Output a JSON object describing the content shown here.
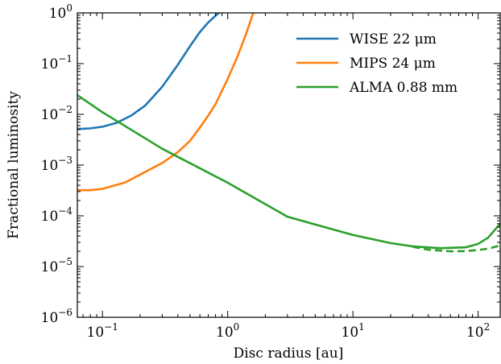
{
  "chart_data": {
    "type": "line",
    "title": "",
    "xlabel": "Disc radius [au]",
    "ylabel": "Fractional luminosity",
    "xscale": "log",
    "yscale": "log",
    "xlim": [
      0.063,
      150
    ],
    "ylim": [
      1e-06,
      1
    ],
    "x_ticks": [
      {
        "value": 0.1,
        "base": "10",
        "exp": "−1"
      },
      {
        "value": 1,
        "base": "10",
        "exp": "0"
      },
      {
        "value": 10,
        "base": "10",
        "exp": "1"
      },
      {
        "value": 100,
        "base": "10",
        "exp": "2"
      }
    ],
    "y_ticks": [
      {
        "value": 1e-06,
        "base": "10",
        "exp": "−6"
      },
      {
        "value": 1e-05,
        "base": "10",
        "exp": "−5"
      },
      {
        "value": 0.0001,
        "base": "10",
        "exp": "−4"
      },
      {
        "value": 0.001,
        "base": "10",
        "exp": "−3"
      },
      {
        "value": 0.01,
        "base": "10",
        "exp": "−2"
      },
      {
        "value": 0.1,
        "base": "10",
        "exp": "−1"
      },
      {
        "value": 1,
        "base": "10",
        "exp": "0"
      }
    ],
    "legend_position": "top-right",
    "grid": false,
    "series": [
      {
        "name": "WISE 22 μm",
        "color": "#1f77b4",
        "style": "solid",
        "x": [
          0.063,
          0.07,
          0.08,
          0.1,
          0.13,
          0.17,
          0.22,
          0.3,
          0.4,
          0.5,
          0.6,
          0.7,
          0.8,
          0.85
        ],
        "y": [
          0.0052,
          0.0052,
          0.0053,
          0.0057,
          0.0068,
          0.0095,
          0.015,
          0.035,
          0.095,
          0.22,
          0.42,
          0.65,
          0.88,
          1.0
        ]
      },
      {
        "name": "MIPS 24 μm",
        "color": "#ff7f0e",
        "style": "solid",
        "x": [
          0.063,
          0.08,
          0.1,
          0.15,
          0.2,
          0.3,
          0.4,
          0.5,
          0.6,
          0.7,
          0.8,
          1.0,
          1.2,
          1.4,
          1.6
        ],
        "y": [
          0.00032,
          0.00032,
          0.00034,
          0.00045,
          0.00065,
          0.0011,
          0.0018,
          0.003,
          0.0055,
          0.0095,
          0.016,
          0.05,
          0.14,
          0.38,
          1.0
        ]
      },
      {
        "name": "ALMA 0.88 mm",
        "color": "#2ca02c",
        "style": "solid",
        "x": [
          0.063,
          0.1,
          0.3,
          1,
          3,
          10,
          20,
          30,
          50,
          80,
          100,
          120,
          150
        ],
        "y": [
          0.024,
          0.011,
          0.0021,
          0.00045,
          9.6e-05,
          4.2e-05,
          2.9e-05,
          2.5e-05,
          2.3e-05,
          2.4e-05,
          2.8e-05,
          3.7e-05,
          7e-05
        ]
      },
      {
        "name": "",
        "color": "#2ca02c",
        "style": "dashed",
        "x": [
          30,
          40,
          60,
          80,
          100,
          120,
          150
        ],
        "y": [
          2.45e-05,
          2.15e-05,
          2e-05,
          2.02e-05,
          2.12e-05,
          2.25e-05,
          2.6e-05
        ]
      }
    ]
  }
}
